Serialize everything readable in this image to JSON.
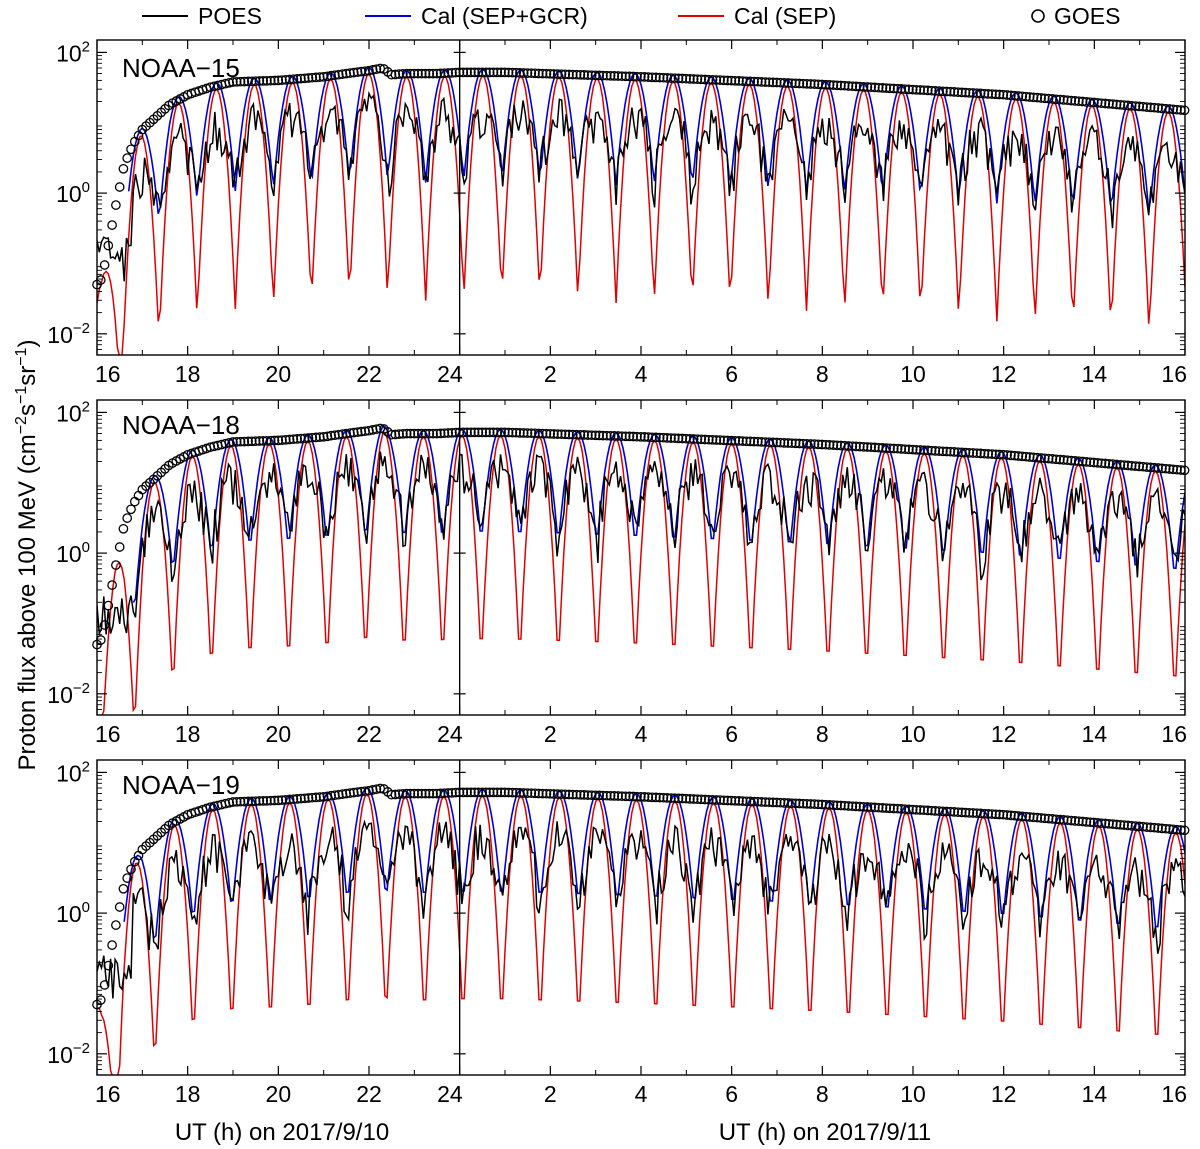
{
  "legend": {
    "placement": "top",
    "items": [
      {
        "label": "POES",
        "color": "#000000",
        "style": "line"
      },
      {
        "label": "Cal (SEP+GCR)",
        "color": "#0000dd",
        "style": "line"
      },
      {
        "label": "Cal (SEP)",
        "color": "#e00000",
        "style": "line"
      },
      {
        "label": "GOES",
        "color": "#000000",
        "style": "open-circle"
      }
    ]
  },
  "ylabel": {
    "prefix": "Proton flux above 100 MeV (cm",
    "sup1": "−2",
    "mid1": "s",
    "sup2": "−1",
    "mid2": "sr",
    "sup3": "−1",
    "suffix": ")"
  },
  "xlabels": {
    "left": "UT (h) on 2017/9/10",
    "right": "UT (h) on 2017/9/11"
  },
  "chart_data": {
    "type": "line",
    "yscale": "log",
    "ylim": [
      0.005,
      150
    ],
    "yticks": [
      {
        "value": 0.01,
        "base": "10",
        "exp": "−2"
      },
      {
        "value": 1,
        "base": "10",
        "exp": "0"
      },
      {
        "value": 100,
        "base": "10",
        "exp": "2"
      }
    ],
    "xlim_hours": [
      16,
      40
    ],
    "split_hour": 24,
    "xticks": [
      {
        "h": 16,
        "label": "16"
      },
      {
        "h": 18,
        "label": "18"
      },
      {
        "h": 20,
        "label": "20"
      },
      {
        "h": 22,
        "label": "22"
      },
      {
        "h": 24,
        "label": "24"
      },
      {
        "h": 26,
        "label": "2"
      },
      {
        "h": 28,
        "label": "4"
      },
      {
        "h": 30,
        "label": "6"
      },
      {
        "h": 32,
        "label": "8"
      },
      {
        "h": 34,
        "label": "10"
      },
      {
        "h": 36,
        "label": "12"
      },
      {
        "h": 38,
        "label": "14"
      },
      {
        "h": 40,
        "label": "16"
      }
    ],
    "goes_profile": {
      "x": [
        16.0,
        16.1,
        16.2,
        16.4,
        16.6,
        16.8,
        17.0,
        17.3,
        17.6,
        18.0,
        18.5,
        19.0,
        20.0,
        21.0,
        21.5,
        22.0,
        22.3,
        22.5,
        22.8,
        23.5,
        24.0,
        25.0,
        28.0,
        32.0,
        36.0,
        40.0
      ],
      "y": [
        0.05,
        0.06,
        0.12,
        0.6,
        2.5,
        5,
        8,
        12,
        18,
        25,
        32,
        38,
        40,
        45,
        50,
        55,
        60,
        48,
        50,
        50,
        52,
        52,
        45,
        35,
        25,
        15
      ]
    },
    "panels": [
      {
        "label": "NOAA−15",
        "orbit_period_h": 1.68,
        "phase_h": 16.95,
        "poes_scale": 0.4,
        "start_h": 16.7
      },
      {
        "label": "NOAA−18",
        "orbit_period_h": 1.7,
        "phase_h": 17.25,
        "poes_scale": 0.45,
        "start_h": 16.8
      },
      {
        "label": "NOAA−19",
        "orbit_period_h": 1.7,
        "phase_h": 16.85,
        "poes_scale": 0.35,
        "start_h": 16.6
      }
    ]
  }
}
